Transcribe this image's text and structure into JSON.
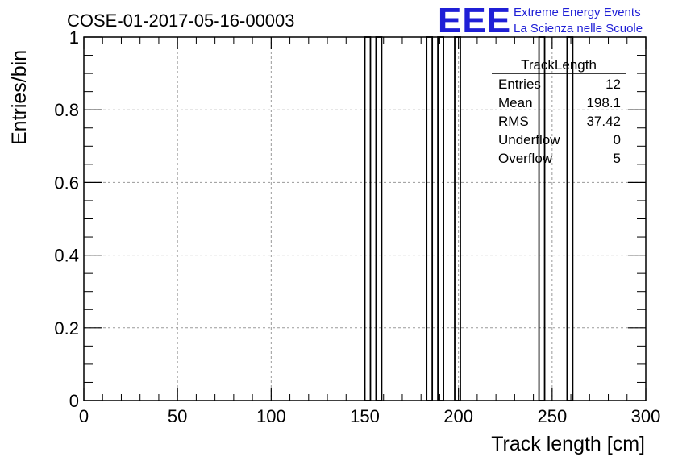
{
  "title": "COSE-01-2017-05-16-00003",
  "logo": {
    "mark": "EEE",
    "line1": "Extreme Energy Events",
    "line2": "La Scienza nelle Scuole",
    "color": "#1f1fd6"
  },
  "stats": {
    "name": "TrackLength",
    "rows": [
      {
        "label": "Entries",
        "value": "12"
      },
      {
        "label": "Mean",
        "value": "198.1"
      },
      {
        "label": "RMS",
        "value": "37.42"
      },
      {
        "label": "Underflow",
        "value": "0"
      },
      {
        "label": "Overflow",
        "value": "5"
      }
    ]
  },
  "chart_data": {
    "type": "bar",
    "xlabel": "Track length [cm]",
    "ylabel": "Entries/bin",
    "xlim": [
      0,
      300
    ],
    "ylim": [
      0,
      1
    ],
    "grid": true,
    "xticks": [
      "0",
      "50",
      "100",
      "150",
      "200",
      "250",
      "300"
    ],
    "yticks": [
      "0",
      "0.2",
      "0.4",
      "0.6",
      "0.8",
      "1"
    ],
    "bin_width": 3,
    "bins": [
      {
        "x": 150,
        "value": 1
      },
      {
        "x": 156,
        "value": 1
      },
      {
        "x": 183,
        "value": 1
      },
      {
        "x": 189,
        "value": 1
      },
      {
        "x": 198,
        "value": 1
      },
      {
        "x": 243,
        "value": 1
      },
      {
        "x": 258,
        "value": 1
      }
    ]
  }
}
